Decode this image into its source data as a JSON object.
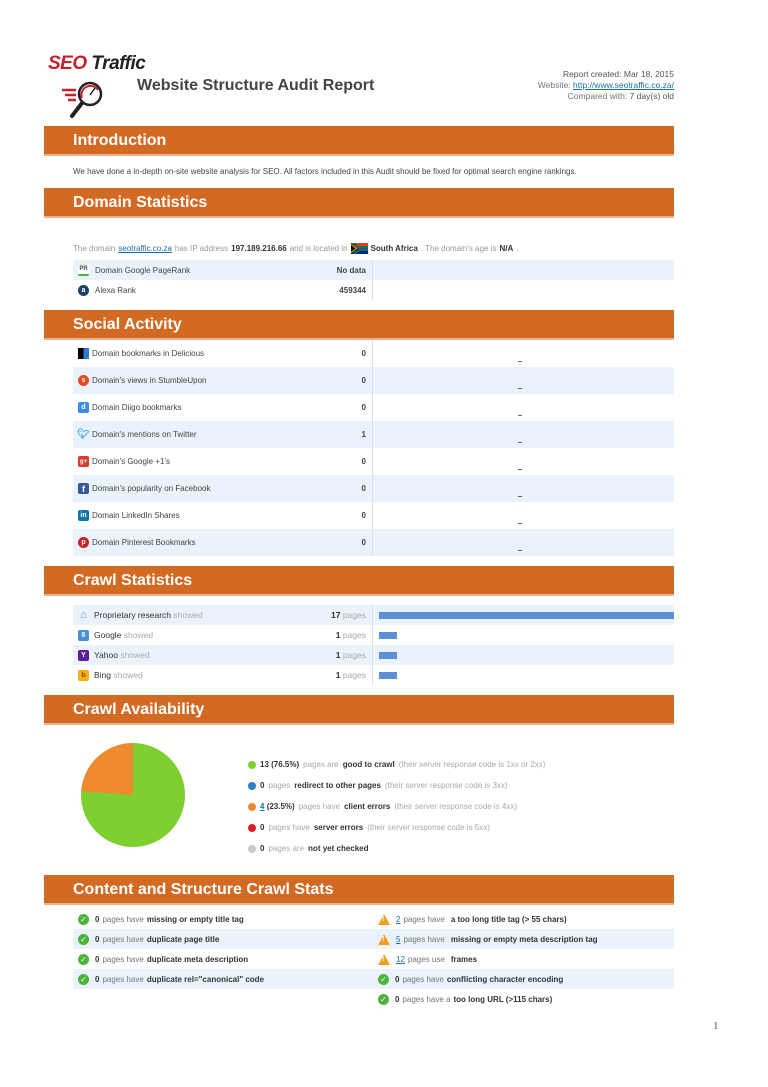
{
  "header": {
    "logo_seo": "SEO",
    "logo_traffic": "Traffic",
    "title": "Website Structure Audit Report",
    "report_created_label": "Report created:",
    "report_created": "Mar 18, 2015",
    "website_label": "Website:",
    "website_url": "http://www.seotraffic.co.za/",
    "compared_label": "Compared with:",
    "compared_value": "7 day(s) old"
  },
  "introduction": {
    "title": "Introduction",
    "text": "We have done a in-depth on-site website analysis for SEO. All factors included in this Audit should be fixed for optimal search engine rankings."
  },
  "domain_statistics": {
    "title": "Domain Statistics",
    "line": {
      "p1": "The domain",
      "domain": "seotraffic.co.za",
      "p2": "has IP address",
      "ip": "197.189.216.66",
      "p3": "and is located in",
      "country": "South Africa",
      "p4": ". The domain's age is",
      "age": "N/A",
      "p5": "."
    },
    "rows": [
      {
        "icon": "pagerank-icon",
        "label": "Domain Google PageRank",
        "value": "No data"
      },
      {
        "icon": "alexa-icon",
        "label": "Alexa Rank",
        "value": "459344"
      }
    ]
  },
  "social_activity": {
    "title": "Social Activity",
    "rows": [
      {
        "icon": "delicious-icon",
        "label": "Domain bookmarks in Delicious",
        "value": "0"
      },
      {
        "icon": "stumbleupon-icon",
        "label": "Domain's views in StumbleUpon",
        "value": "0"
      },
      {
        "icon": "diigo-icon",
        "label": "Domain Diigo bookmarks",
        "value": "0"
      },
      {
        "icon": "twitter-icon",
        "label": "Domain's mentions on Twitter",
        "value": "1"
      },
      {
        "icon": "google-plus-icon",
        "label": "Domain's Google +1's",
        "value": "0"
      },
      {
        "icon": "facebook-icon",
        "label": "Domain's popularity on Facebook",
        "value": "0"
      },
      {
        "icon": "linkedin-icon",
        "label": "Domain LinkedIn Shares",
        "value": "0"
      },
      {
        "icon": "pinterest-icon",
        "label": "Domain Pinterest Bookmarks",
        "value": "0"
      }
    ]
  },
  "crawl_statistics": {
    "title": "Crawl Statistics",
    "showed": "showed",
    "pages_label": "pages",
    "rows": [
      {
        "icon": "home-icon",
        "name": "Proprietary research",
        "count": "17",
        "bar_pct": 100
      },
      {
        "icon": "google-icon",
        "name": "Google",
        "count": "1",
        "bar_pct": 6
      },
      {
        "icon": "yahoo-icon",
        "name": "Yahoo",
        "count": "1",
        "bar_pct": 6
      },
      {
        "icon": "bing-icon",
        "name": "Bing",
        "count": "1",
        "bar_pct": 6
      }
    ]
  },
  "crawl_availability": {
    "title": "Crawl Availability",
    "legend": [
      {
        "color": "#7ed030",
        "count": "13 (76.5%)",
        "pre": "pages are",
        "bold": "good to crawl",
        "note": "(their server response code is 1xx or 2xx)"
      },
      {
        "color": "#2a7fc8",
        "count": "0",
        "pre": "pages",
        "bold": "redirect to other pages",
        "note": "(their server response code is 3xx)"
      },
      {
        "color": "#f08a30",
        "count_link": "4",
        "count": "(23.5%)",
        "pre": "pages have",
        "bold": "client errors",
        "note": "(their server response code is 4xx)"
      },
      {
        "color": "#e02020",
        "count": "0",
        "pre": "pages have",
        "bold": "server errors",
        "note": "(their server response code is 5xx)"
      },
      {
        "color": "#c8c8c8",
        "count": "0",
        "pre": "pages are",
        "bold": "not yet checked",
        "note": ""
      }
    ]
  },
  "chart_data": {
    "type": "pie",
    "title": "Crawl Availability",
    "categories": [
      "Good to crawl",
      "Redirect",
      "Client errors",
      "Server errors",
      "Not yet checked"
    ],
    "values": [
      13,
      0,
      4,
      0,
      0
    ],
    "percent": [
      76.5,
      0,
      23.5,
      0,
      0
    ],
    "colors": [
      "#7ed030",
      "#2a7fc8",
      "#f08a30",
      "#e02020",
      "#c8c8c8"
    ]
  },
  "content_stats": {
    "title": "Content and Structure Crawl Stats",
    "left": [
      {
        "status": "ok",
        "count": "0",
        "pre": "pages have",
        "bold": "missing or empty title tag"
      },
      {
        "status": "ok",
        "count": "0",
        "pre": "pages have",
        "bold": "duplicate page title"
      },
      {
        "status": "ok",
        "count": "0",
        "pre": "pages have",
        "bold": "duplicate meta description"
      },
      {
        "status": "ok",
        "count": "0",
        "pre": "pages have",
        "bold": "duplicate rel=\"canonical\" code"
      }
    ],
    "right": [
      {
        "status": "warn",
        "count": "2",
        "pre": "pages have",
        "bold": "a too long title tag (> 55 chars)"
      },
      {
        "status": "warn",
        "count": "5",
        "pre": "pages have",
        "bold": "missing or empty meta description tag"
      },
      {
        "status": "warn",
        "count": "12",
        "pre": "pages use",
        "bold": "frames"
      },
      {
        "status": "ok",
        "count": "0",
        "pre": "pages have",
        "bold": "conflicting character encoding"
      },
      {
        "status": "ok",
        "count": "0",
        "pre": "pages have a",
        "bold": "too long URL (>115 chars)"
      }
    ]
  },
  "footer": {
    "page_number": "1"
  }
}
